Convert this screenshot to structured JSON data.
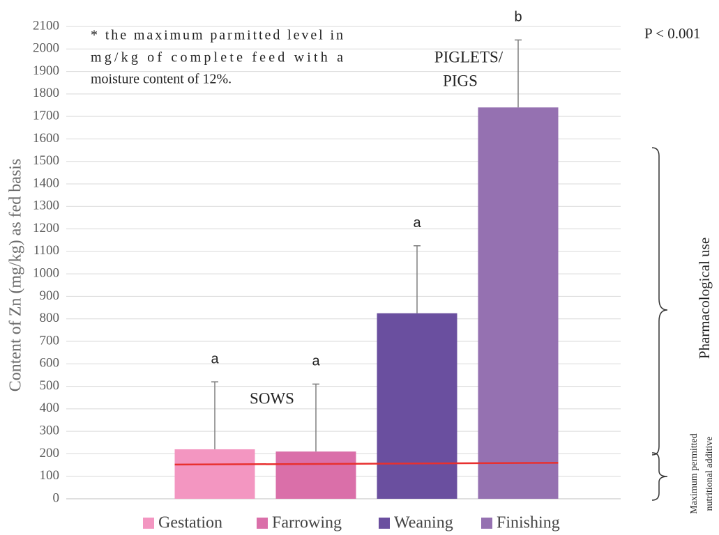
{
  "chart_data": {
    "type": "bar",
    "y_label": "Content of Zn (mg/kg) as fed basis",
    "ylim": [
      0,
      2100
    ],
    "yticks": [
      0,
      100,
      200,
      300,
      400,
      500,
      600,
      700,
      800,
      900,
      1000,
      1100,
      1200,
      1300,
      1400,
      1500,
      1600,
      1700,
      1800,
      1900,
      2000,
      2100
    ],
    "grid": true,
    "series": [
      {
        "name": "Gestation",
        "color": "#f396c1",
        "values": [
          220
        ],
        "errors": [
          300
        ]
      },
      {
        "name": "Farrowing",
        "color": "#da6fa9",
        "values": [
          210
        ],
        "errors": [
          300
        ]
      },
      {
        "name": "Weaning",
        "color": "#6a4f9f",
        "values": [
          825
        ],
        "errors": [
          300
        ]
      },
      {
        "name": "Finishing",
        "color": "#9571b1",
        "values": [
          1740
        ],
        "errors": [
          300
        ]
      }
    ],
    "significance_labels": [
      "a",
      "a",
      "a",
      "b"
    ],
    "reference_line": [
      152,
      160
    ],
    "reference_color": "#e8302f",
    "legend": "bottom",
    "note_lines": [
      "* the maximum parmitted level in",
      "mg/kg of complete feed with a",
      "moisture content of 12%."
    ],
    "group_labels": [
      "SOWS",
      "PIGLETS/",
      "PIGS"
    ],
    "p_value": "P < 0.001",
    "pharmacological_label": "Pharmacological use",
    "nutritional_label": [
      "Maximum permitted",
      "nutritional additive"
    ]
  }
}
